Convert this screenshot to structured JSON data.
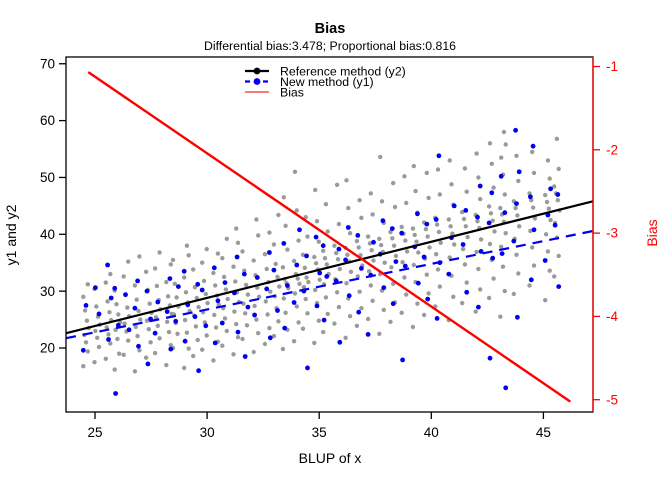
{
  "chart_data": {
    "type": "scatter",
    "title": "Bias",
    "subtitle": "Differential bias:3.478; Proportional bias:0.816",
    "xlabel": "BLUP of x",
    "ylabel": "y1 and y2",
    "y2label": "Bias",
    "x_ticks": [
      25,
      30,
      35,
      40,
      45
    ],
    "y_ticks": [
      20,
      30,
      40,
      50,
      60,
      70
    ],
    "y2_ticks": [
      -1,
      -2,
      -3,
      -4,
      -5
    ],
    "xlim": [
      23.7,
      47.2
    ],
    "ylim": [
      8.7,
      71.3
    ],
    "y2lim": [
      -5.15,
      -0.9
    ],
    "grid": false,
    "legend_position": "top-center-inside",
    "colors": {
      "gray_points": "#9a9a9a",
      "blue_points": "#0000ee",
      "reference_line": "#000000",
      "new_line": "#0000ee",
      "bias_line": "#ff0000",
      "legend_bias_line": "#f47c7c",
      "right_axis": "#ff0000"
    },
    "lines": {
      "reference": {
        "label": "Reference method (y2)",
        "intercept": -0.8,
        "slope": 0.987,
        "x_range": [
          23.71,
          47.21
        ],
        "style": "solid"
      },
      "new": {
        "label": "New method (y1)",
        "intercept": 2.678,
        "slope": 0.803,
        "x_range": [
          23.71,
          47.21
        ],
        "style": "dashed"
      },
      "bias": {
        "label": "Bias",
        "intercept": 3.478,
        "slope": -0.184,
        "x_range": [
          24.7,
          46.2
        ],
        "style": "solid",
        "axis": "right"
      }
    },
    "points": [
      {
        "x": 24.6,
        "gray": [
          16.8,
          19.4,
          21.0,
          22.3,
          23.5,
          24.8,
          26.6,
          29.0,
          31.2
        ],
        "blue": [
          19.6,
          27.5
        ]
      },
      {
        "x": 25.1,
        "gray": [
          17.5,
          20.2,
          21.8,
          23.0,
          24.1,
          25.5,
          27.3,
          30.4
        ],
        "blue": [
          26.0,
          30.6
        ]
      },
      {
        "x": 25.6,
        "gray": [
          18.1,
          20.8,
          22.4,
          23.6,
          24.9,
          26.3,
          28.2,
          31.5,
          33.0
        ],
        "blue": [
          21.5,
          28.8,
          34.6
        ]
      },
      {
        "x": 26.0,
        "gray": [
          16.2,
          19.0,
          21.6,
          23.2,
          24.5,
          25.9,
          27.7,
          30.1
        ],
        "blue": [
          12.0,
          24.0,
          30.5
        ]
      },
      {
        "x": 26.4,
        "gray": [
          18.8,
          21.3,
          22.9,
          24.3,
          25.6,
          27.1,
          29.3,
          32.6,
          35.2
        ],
        "blue": [
          23.2,
          29.4
        ]
      },
      {
        "x": 26.9,
        "gray": [
          15.9,
          19.6,
          22.1,
          23.7,
          25.0,
          26.5,
          28.5,
          31.0,
          36.1
        ],
        "blue": [
          20.3,
          27.0,
          31.8
        ]
      },
      {
        "x": 27.4,
        "gray": [
          18.3,
          21.0,
          23.3,
          24.8,
          26.2,
          27.8,
          30.2,
          33.4
        ],
        "blue": [
          17.2,
          25.1,
          30.0
        ]
      },
      {
        "x": 27.8,
        "gray": [
          19.1,
          21.7,
          23.9,
          25.4,
          26.8,
          28.4,
          30.9,
          34.0,
          36.8
        ],
        "blue": [
          22.6,
          28.1
        ]
      },
      {
        "x": 28.3,
        "gray": [
          17.0,
          20.5,
          22.8,
          24.6,
          26.0,
          27.5,
          29.1,
          31.6,
          34.7
        ],
        "blue": [
          19.8,
          26.4,
          32.2
        ]
      },
      {
        "x": 28.6,
        "gray": [
          20.0,
          22.5,
          24.4,
          25.9,
          27.3,
          28.9,
          31.3,
          35.5
        ],
        "blue": [
          24.7,
          30.8
        ]
      },
      {
        "x": 29.1,
        "gray": [
          16.5,
          19.9,
          22.7,
          24.9,
          26.5,
          28.0,
          29.8,
          32.4,
          36.3,
          38.0
        ],
        "blue": [
          21.2,
          27.6,
          33.5
        ]
      },
      {
        "x": 29.5,
        "gray": [
          18.6,
          21.4,
          23.8,
          25.7,
          27.2,
          28.8,
          30.7,
          33.8
        ],
        "blue": [
          16.0,
          25.5,
          31.2
        ]
      },
      {
        "x": 29.9,
        "gray": [
          19.7,
          22.2,
          24.5,
          26.3,
          27.9,
          29.5,
          31.8,
          35.0,
          37.4
        ],
        "blue": [
          23.9,
          30.2
        ]
      },
      {
        "x": 30.4,
        "gray": [
          17.8,
          21.1,
          23.6,
          25.8,
          27.6,
          29.2,
          31.0,
          33.2,
          36.6
        ],
        "blue": [
          20.9,
          28.3,
          34.1
        ]
      },
      {
        "x": 30.8,
        "gray": [
          20.4,
          23.0,
          25.2,
          27.0,
          28.6,
          30.3,
          32.5,
          35.8,
          39.2
        ],
        "blue": [
          24.4,
          31.5
        ]
      },
      {
        "x": 31.3,
        "gray": [
          18.9,
          21.9,
          24.2,
          26.4,
          28.1,
          29.8,
          31.7,
          34.3,
          38.5,
          41.0
        ],
        "blue": [
          22.8,
          29.7,
          36.0
        ]
      },
      {
        "x": 31.7,
        "gray": [
          21.6,
          24.0,
          26.1,
          27.8,
          29.4,
          31.1,
          33.6,
          37.0
        ],
        "blue": [
          18.5,
          27.2,
          33.0
        ]
      },
      {
        "x": 32.2,
        "gray": [
          19.3,
          22.6,
          25.0,
          27.4,
          29.0,
          30.6,
          32.8,
          35.4,
          39.8,
          42.6
        ],
        "blue": [
          25.8,
          32.4
        ]
      },
      {
        "x": 32.7,
        "gray": [
          20.7,
          23.5,
          25.9,
          28.2,
          29.9,
          31.6,
          33.9,
          36.5,
          40.3
        ],
        "blue": [
          21.8,
          30.4,
          36.8
        ]
      },
      {
        "x": 33.1,
        "gray": [
          22.1,
          24.7,
          27.0,
          29.1,
          30.8,
          32.5,
          34.8,
          38.2,
          43.4
        ],
        "blue": [
          26.6,
          33.7
        ]
      },
      {
        "x": 33.5,
        "gray": [
          19.8,
          23.2,
          26.2,
          28.7,
          30.5,
          31.4,
          32.1,
          34.2,
          37.3,
          41.5,
          46.5
        ],
        "blue": [
          23.5,
          31.0,
          38.4
        ]
      },
      {
        "x": 34.0,
        "gray": [
          21.2,
          24.5,
          27.3,
          29.6,
          31.3,
          32.2,
          33.0,
          35.3,
          38.9,
          44.2,
          51.0
        ],
        "blue": [
          28.0,
          34.6,
          40.8
        ]
      },
      {
        "x": 34.4,
        "gray": [
          23.4,
          26.1,
          28.6,
          30.7,
          31.6,
          32.4,
          34.1,
          36.4,
          39.6,
          43.0
        ],
        "blue": [
          16.5,
          30.0,
          36.2
        ]
      },
      {
        "x": 34.9,
        "gray": [
          20.9,
          24.8,
          27.9,
          30.2,
          32.0,
          33.8,
          34.9,
          36.0,
          38.7,
          42.3,
          47.8
        ],
        "blue": [
          27.4,
          33.2,
          39.5
        ]
      },
      {
        "x": 35.3,
        "gray": [
          22.8,
          26.0,
          28.9,
          31.2,
          33.0,
          34.7,
          35.8,
          37.1,
          40.5,
          45.3
        ],
        "blue": [
          24.9,
          32.6,
          38.0
        ]
      },
      {
        "x": 35.8,
        "gray": [
          24.3,
          27.2,
          29.8,
          32.1,
          33.9,
          35.6,
          36.7,
          38.0,
          41.8,
          48.7
        ],
        "blue": [
          21.0,
          31.8,
          37.4
        ]
      },
      {
        "x": 36.3,
        "gray": [
          21.8,
          25.6,
          28.7,
          31.4,
          33.4,
          35.2,
          36.4,
          37.6,
          40.2,
          44.6,
          49.5
        ],
        "blue": [
          29.2,
          35.5,
          41.2
        ]
      },
      {
        "x": 36.8,
        "gray": [
          23.9,
          27.0,
          29.9,
          32.6,
          34.5,
          36.3,
          37.7,
          38.8,
          42.9,
          46.0
        ],
        "blue": [
          26.3,
          34.0,
          39.8
        ]
      },
      {
        "x": 37.3,
        "gray": [
          25.1,
          28.3,
          31.0,
          33.5,
          35.4,
          37.2,
          38.4,
          39.6,
          43.5,
          47.2
        ],
        "blue": [
          22.4,
          32.8,
          38.6
        ]
      },
      {
        "x": 37.8,
        "gray": [
          22.5,
          26.7,
          30.1,
          33.0,
          35.0,
          36.9,
          38.1,
          39.2,
          42.0,
          45.8,
          53.6
        ],
        "blue": [
          30.6,
          36.5,
          42.4
        ]
      },
      {
        "x": 38.3,
        "gray": [
          24.6,
          28.0,
          31.3,
          34.2,
          36.2,
          38.0,
          39.3,
          40.4,
          44.8,
          49.0
        ],
        "blue": [
          27.8,
          35.2,
          41.0
        ]
      },
      {
        "x": 38.8,
        "gray": [
          26.2,
          29.4,
          32.4,
          35.1,
          37.0,
          38.9,
          40.1,
          41.3,
          45.5,
          50.2
        ],
        "blue": [
          17.9,
          34.4,
          40.2
        ]
      },
      {
        "x": 39.3,
        "gray": [
          23.7,
          27.8,
          31.6,
          34.6,
          36.8,
          38.7,
          39.9,
          41.0,
          43.8,
          47.6,
          52.0
        ],
        "blue": [
          31.4,
          37.8,
          43.6
        ]
      },
      {
        "x": 39.8,
        "gray": [
          25.8,
          29.6,
          32.9,
          35.7,
          37.7,
          39.6,
          40.9,
          42.1,
          46.4,
          50.8
        ],
        "blue": [
          28.6,
          36.0,
          41.8
        ]
      },
      {
        "x": 40.3,
        "gray": [
          27.3,
          30.8,
          33.8,
          36.5,
          38.5,
          40.4,
          41.7,
          42.9,
          47.0,
          51.4
        ],
        "blue": [
          25.2,
          35.0,
          42.6,
          53.8
        ]
      },
      {
        "x": 40.9,
        "gray": [
          24.9,
          29.0,
          32.7,
          35.9,
          38.2,
          40.1,
          41.4,
          42.6,
          45.2,
          48.8,
          53.0
        ],
        "blue": [
          33.0,
          39.4,
          45.0
        ]
      },
      {
        "x": 41.5,
        "gray": [
          27.9,
          31.5,
          34.7,
          37.4,
          39.5,
          41.4,
          42.7,
          43.9,
          47.5,
          51.6
        ],
        "blue": [
          29.8,
          38.2,
          44.2
        ]
      },
      {
        "x": 42.1,
        "gray": [
          26.4,
          30.3,
          33.9,
          36.9,
          39.1,
          41.1,
          42.3,
          43.4,
          46.2,
          50.0,
          54.2
        ],
        "blue": [
          27.2,
          37.0,
          43.0,
          48.5
        ]
      },
      {
        "x": 42.7,
        "gray": [
          28.8,
          32.2,
          35.5,
          38.3,
          40.5,
          42.4,
          43.7,
          44.9,
          48.2,
          52.4,
          56.0
        ],
        "blue": [
          18.2,
          35.8,
          42.0,
          47.3
        ]
      },
      {
        "x": 43.2,
        "gray": [
          25.5,
          30.0,
          34.3,
          37.8,
          40.2,
          42.2,
          43.5,
          44.6,
          47.0,
          50.5,
          53.5,
          55.8,
          58.0
        ],
        "blue": [
          13.0,
          36.6,
          43.8,
          50.2
        ]
      },
      {
        "x": 43.8,
        "gray": [
          29.5,
          33.1,
          36.4,
          39.2,
          41.4,
          43.3,
          44.6,
          45.8,
          49.4,
          53.8
        ],
        "blue": [
          25.4,
          38.8,
          45.4,
          51.0,
          58.3
        ]
      },
      {
        "x": 44.5,
        "gray": [
          31.0,
          34.5,
          37.7,
          40.6,
          42.8,
          44.7,
          46.0,
          47.2,
          50.8,
          54.5
        ],
        "blue": [
          32.0,
          40.8,
          46.6,
          55.5
        ]
      },
      {
        "x": 45.2,
        "gray": [
          28.4,
          33.6,
          37.0,
          40.0,
          42.5,
          44.5,
          45.7,
          46.9,
          49.8,
          53.0
        ],
        "blue": [
          35.4,
          43.4,
          48.0
        ]
      },
      {
        "x": 45.6,
        "gray": [
          32.6,
          36.2,
          39.4,
          42.0,
          44.2,
          46.0,
          47.2,
          48.4,
          51.5,
          56.8
        ],
        "blue": [
          30.8,
          41.6,
          47.0
        ]
      }
    ]
  }
}
